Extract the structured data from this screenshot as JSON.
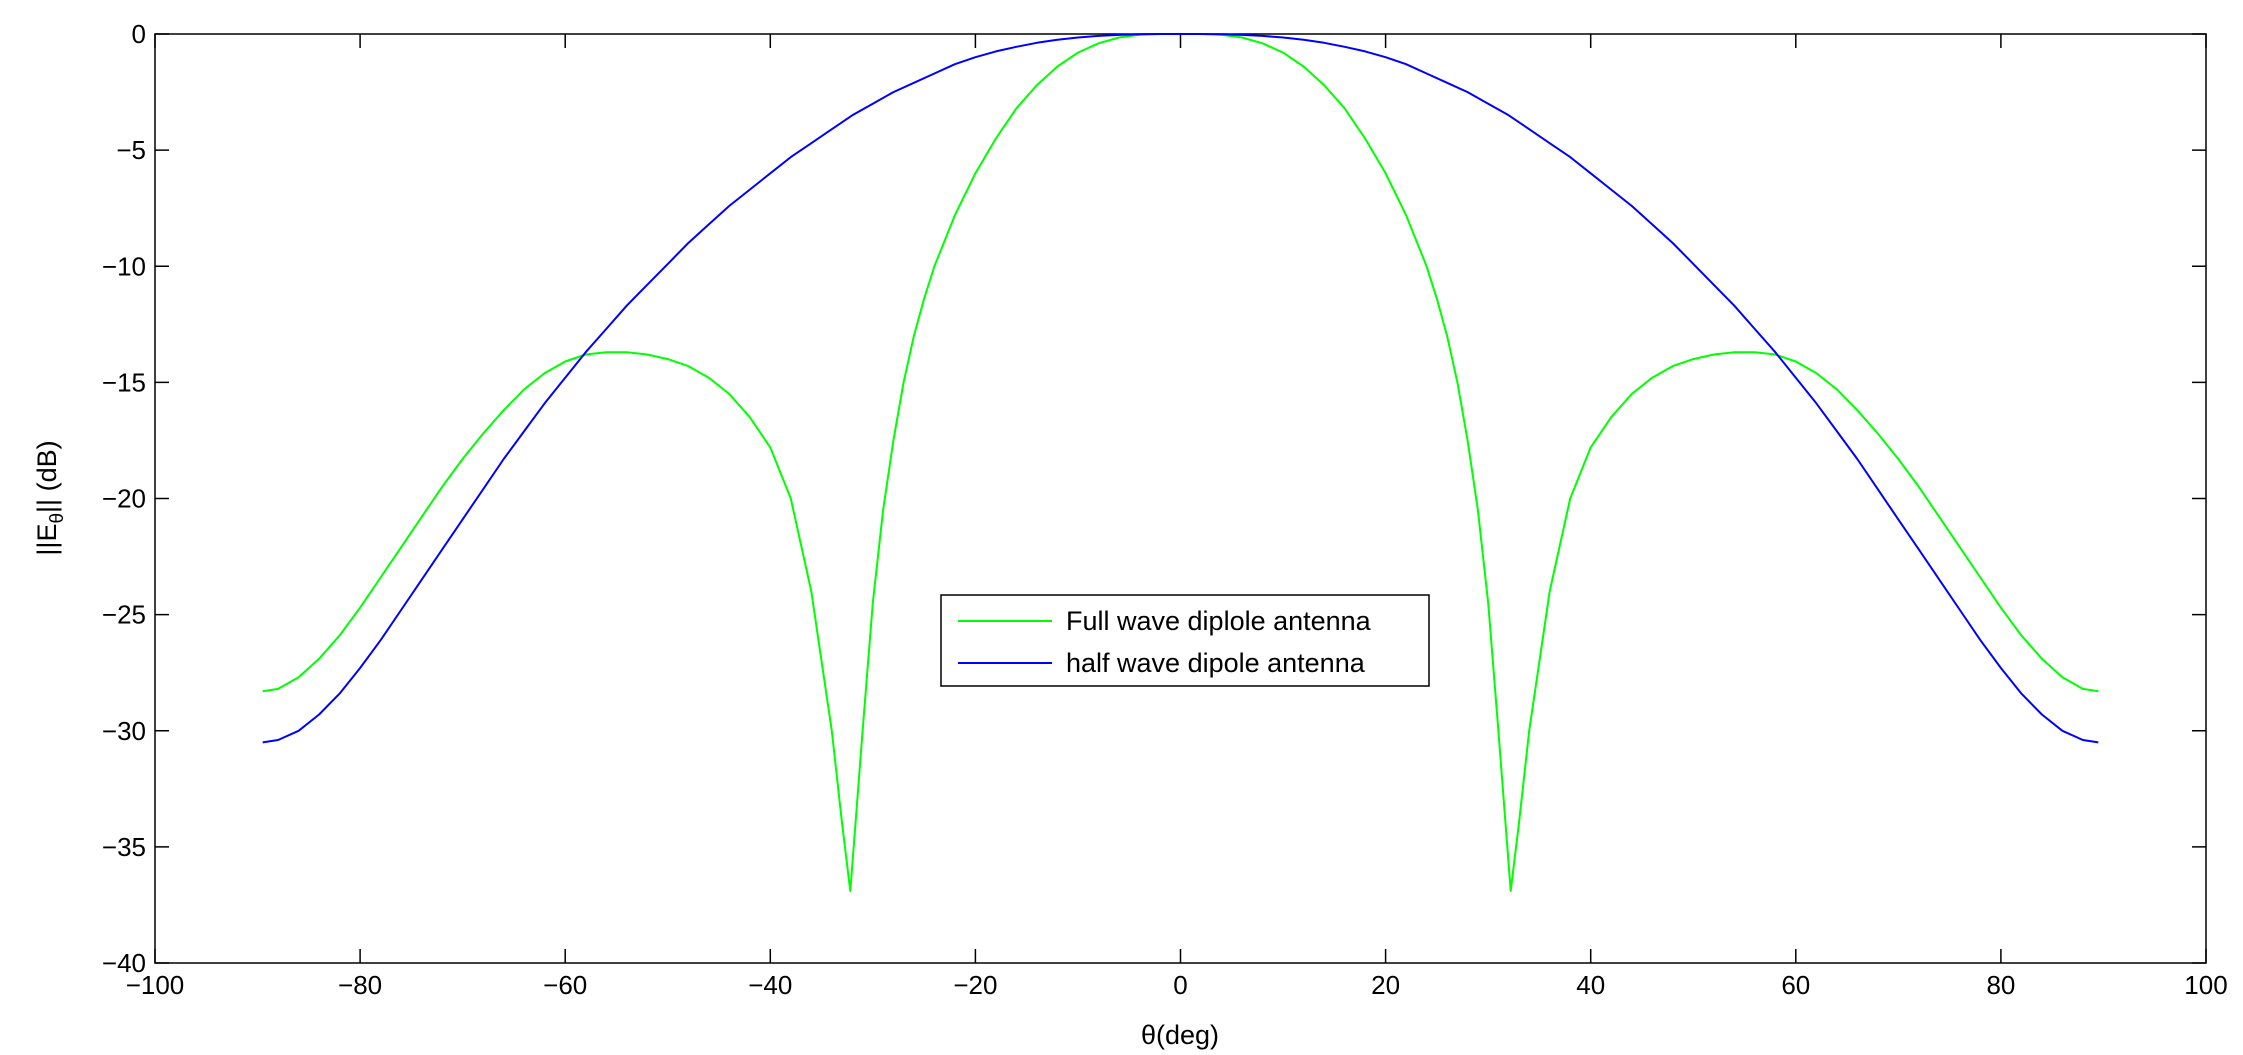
{
  "chart_data": {
    "type": "line",
    "title": "",
    "xlabel": "θ(deg)",
    "ylabel_main": "||E",
    "ylabel_sub": "θ",
    "ylabel_rest": "|| (dB)",
    "xlim": [
      -100,
      100
    ],
    "ylim": [
      -40,
      0
    ],
    "xticks": [
      -100,
      -80,
      -60,
      -40,
      -20,
      0,
      20,
      40,
      60,
      80,
      100
    ],
    "yticks": [
      0,
      -5,
      -10,
      -15,
      -20,
      -25,
      -30,
      -35,
      -40
    ],
    "grid": false,
    "legend_position": "center",
    "series": [
      {
        "name": "Full wave diplole antenna",
        "color": "#00ff00",
        "x": [
          -89.5,
          -88,
          -86,
          -84,
          -82,
          -80,
          -78,
          -76,
          -74,
          -72,
          -70,
          -68,
          -66,
          -64,
          -62,
          -60,
          -58,
          -56,
          -54,
          -52,
          -50,
          -48,
          -46,
          -44,
          -42,
          -40,
          -38,
          -36,
          -34,
          -33,
          -32.2,
          -31,
          -30,
          -29,
          -28,
          -27,
          -26,
          -25,
          -24,
          -22,
          -20,
          -18,
          -16,
          -14,
          -12,
          -10,
          -8,
          -6,
          -4,
          -2,
          0,
          2,
          4,
          6,
          8,
          10,
          12,
          14,
          16,
          18,
          20,
          22,
          24,
          25,
          26,
          27,
          28,
          29,
          30,
          31,
          32.2,
          33,
          34,
          36,
          38,
          40,
          42,
          44,
          46,
          48,
          50,
          52,
          54,
          56,
          58,
          60,
          62,
          64,
          66,
          68,
          70,
          72,
          74,
          76,
          78,
          80,
          82,
          84,
          86,
          88,
          89.5
        ],
        "y": [
          -28.3,
          -28.2,
          -27.7,
          -26.9,
          -25.9,
          -24.7,
          -23.4,
          -22.1,
          -20.8,
          -19.5,
          -18.3,
          -17.2,
          -16.2,
          -15.3,
          -14.6,
          -14.1,
          -13.8,
          -13.7,
          -13.7,
          -13.8,
          -14.0,
          -14.3,
          -14.8,
          -15.5,
          -16.5,
          -17.8,
          -20.0,
          -24.0,
          -30.0,
          -34.0,
          -36.9,
          -30.0,
          -24.5,
          -20.5,
          -17.5,
          -15.0,
          -13.0,
          -11.4,
          -10.0,
          -7.8,
          -6.0,
          -4.5,
          -3.2,
          -2.2,
          -1.4,
          -0.8,
          -0.4,
          -0.15,
          -0.03,
          0.0,
          0.0,
          0.0,
          -0.03,
          -0.15,
          -0.4,
          -0.8,
          -1.4,
          -2.2,
          -3.2,
          -4.5,
          -6.0,
          -7.8,
          -10.0,
          -11.4,
          -13.0,
          -15.0,
          -17.5,
          -20.5,
          -24.5,
          -30.0,
          -36.9,
          -34.0,
          -30.0,
          -24.0,
          -20.0,
          -17.8,
          -16.5,
          -15.5,
          -14.8,
          -14.3,
          -14.0,
          -13.8,
          -13.7,
          -13.7,
          -13.8,
          -14.1,
          -14.6,
          -15.3,
          -16.2,
          -17.2,
          -18.3,
          -19.5,
          -20.8,
          -22.1,
          -23.4,
          -24.7,
          -25.9,
          -26.9,
          -27.7,
          -28.2,
          -28.3
        ]
      },
      {
        "name": "half wave dipole antenna",
        "color": "#0000ff",
        "x": [
          -89.5,
          -88,
          -86,
          -84,
          -82,
          -80,
          -78,
          -76,
          -74,
          -72,
          -70,
          -68,
          -66,
          -64,
          -62,
          -60,
          -58,
          -56,
          -54,
          -52,
          -50,
          -48,
          -46,
          -44,
          -42,
          -40,
          -38,
          -36,
          -34,
          -32,
          -30,
          -28,
          -26,
          -24,
          -22,
          -20,
          -18,
          -16,
          -14,
          -12,
          -10,
          -8,
          -6,
          -4,
          -2,
          0,
          2,
          4,
          6,
          8,
          10,
          12,
          14,
          16,
          18,
          20,
          22,
          24,
          26,
          28,
          30,
          32,
          34,
          36,
          38,
          40,
          42,
          44,
          46,
          48,
          50,
          52,
          54,
          56,
          58,
          60,
          62,
          64,
          66,
          68,
          70,
          72,
          74,
          76,
          78,
          80,
          82,
          84,
          86,
          88,
          89.5
        ],
        "y": [
          -30.5,
          -30.4,
          -30.0,
          -29.3,
          -28.4,
          -27.3,
          -26.1,
          -24.8,
          -23.5,
          -22.2,
          -20.9,
          -19.6,
          -18.3,
          -17.1,
          -15.9,
          -14.8,
          -13.7,
          -12.7,
          -11.7,
          -10.8,
          -9.9,
          -9.0,
          -8.2,
          -7.4,
          -6.7,
          -6.0,
          -5.3,
          -4.7,
          -4.1,
          -3.5,
          -3.0,
          -2.5,
          -2.1,
          -1.7,
          -1.3,
          -1.0,
          -0.75,
          -0.55,
          -0.38,
          -0.25,
          -0.15,
          -0.08,
          -0.04,
          -0.01,
          0.0,
          0.0,
          0.0,
          -0.01,
          -0.04,
          -0.08,
          -0.15,
          -0.25,
          -0.38,
          -0.55,
          -0.75,
          -1.0,
          -1.3,
          -1.7,
          -2.1,
          -2.5,
          -3.0,
          -3.5,
          -4.1,
          -4.7,
          -5.3,
          -6.0,
          -6.7,
          -7.4,
          -8.2,
          -9.0,
          -9.9,
          -10.8,
          -11.7,
          -12.7,
          -13.7,
          -14.8,
          -15.9,
          -17.1,
          -18.3,
          -19.6,
          -20.9,
          -22.2,
          -23.5,
          -24.8,
          -26.1,
          -27.3,
          -28.4,
          -29.3,
          -30.0,
          -30.4,
          -30.5
        ]
      }
    ]
  }
}
